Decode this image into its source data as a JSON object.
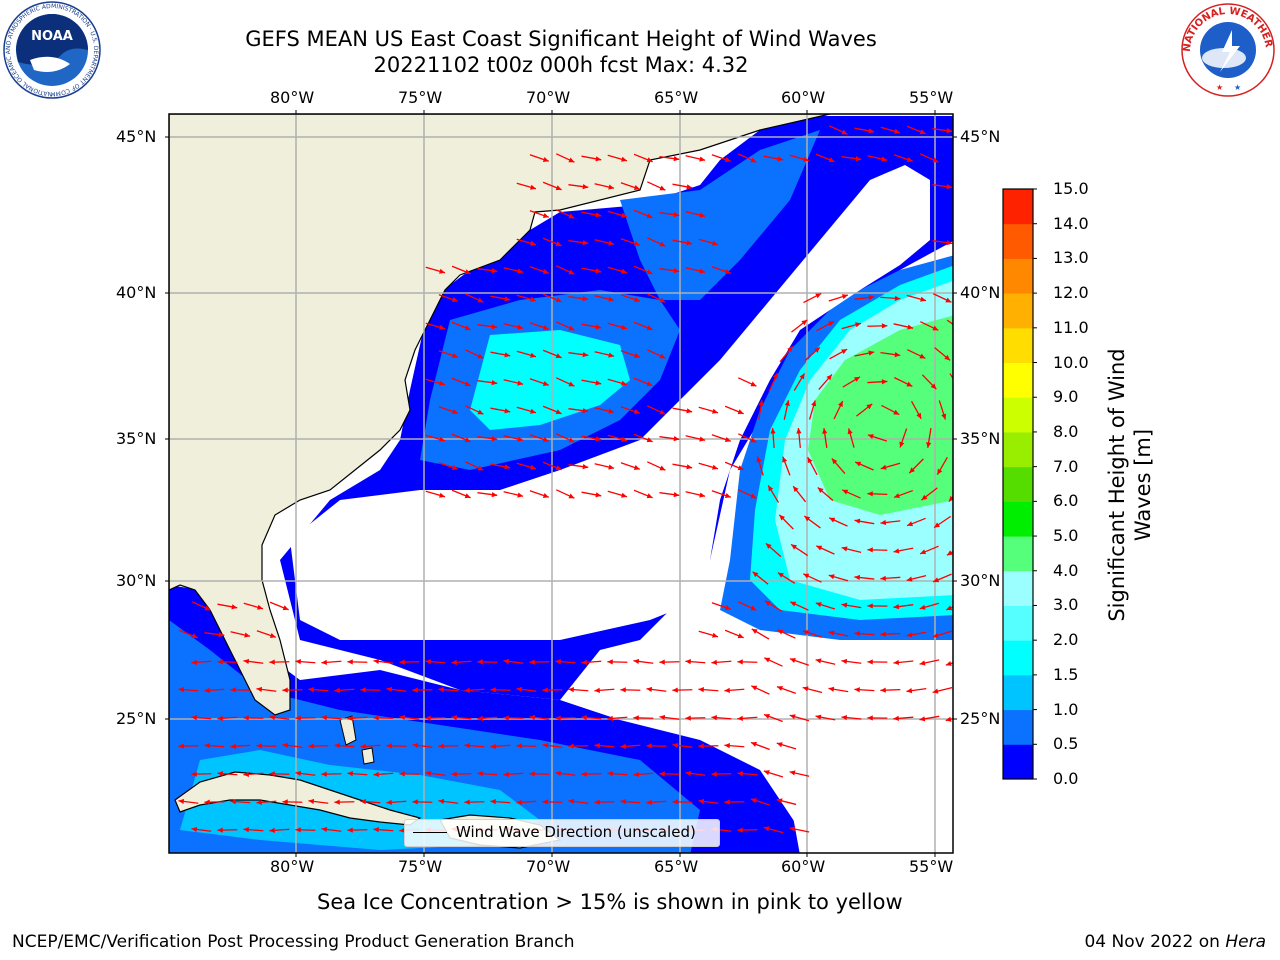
{
  "title_line1": "GEFS MEAN US East Coast Significant Height of Wind Waves",
  "title_line2": "20221102 t00z 000h fcst   Max: 4.32",
  "subtitle": "Sea Ice Concentration > 15% is shown in pink to yellow",
  "footer_left": "NCEP/EMC/Verification Post Processing Product Generation Branch",
  "footer_date": "04 Nov 2022 on ",
  "footer_machine": "Hera",
  "logos": {
    "noaa": {
      "text": "NOAA",
      "ring_text": "NATIONAL OCEANIC AND ATMOSPHERIC ADMINISTRATION · U.S. DEPARTMENT OF COMMERCE"
    },
    "nws": {
      "ring_text": "NATIONAL WEATHER SERVICE"
    }
  },
  "legend": {
    "label": "Wind Wave Direction (unscaled)"
  },
  "colorbar": {
    "title": "Significant Height of Wind Waves [m]",
    "ticks": [
      "0.0",
      "0.5",
      "1.0",
      "1.5",
      "2.0",
      "3.0",
      "4.0",
      "5.0",
      "6.0",
      "7.0",
      "8.0",
      "9.0",
      "10.0",
      "11.0",
      "12.0",
      "13.0",
      "14.0",
      "15.0"
    ],
    "colors": [
      "#0000ff",
      "#0a72ff",
      "#00c4ff",
      "#00ffff",
      "#55ffff",
      "#9cffff",
      "#55ff7b",
      "#00ee00",
      "#55dd00",
      "#99ee00",
      "#ccff00",
      "#ffff00",
      "#ffdd00",
      "#ffb000",
      "#ff8800",
      "#ff5a00",
      "#ff2200"
    ]
  },
  "map": {
    "lon_labels": [
      "80°W",
      "75°W",
      "70°W",
      "65°W",
      "60°W",
      "55°W"
    ],
    "lat_labels": [
      "45°N",
      "40°N",
      "35°N",
      "30°N",
      "25°N"
    ],
    "colors": {
      "land": "#efefdc",
      "ocean_empty": "#ffffff",
      "arrow": "#ff0000",
      "grid": "#b0b0b0"
    }
  }
}
